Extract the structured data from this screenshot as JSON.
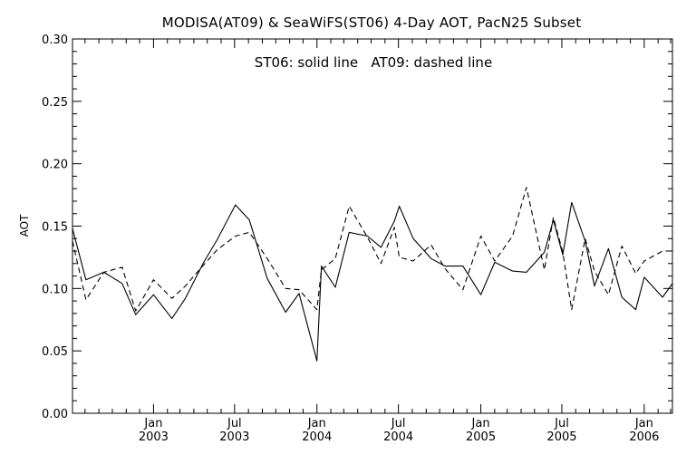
{
  "chart_data": {
    "type": "line",
    "title": "MODISA(AT09) & SeaWiFS(ST06) 4-Day AOT, PacN25 Subset",
    "annotation": "ST06: solid line   AT09: dashed line",
    "xlabel": "",
    "ylabel": "AOT",
    "ylim": [
      0.0,
      0.3
    ],
    "yticks": [
      0.0,
      0.05,
      0.1,
      0.15,
      0.2,
      0.25,
      0.3
    ],
    "ytick_labels": [
      "0.00",
      "0.05",
      "0.10",
      "0.15",
      "0.20",
      "0.25",
      "0.30"
    ],
    "xlim": [
      "2002-07-04",
      "2006-03-05"
    ],
    "xticks": [
      {
        "date": "2003-01-01",
        "month": "Jan",
        "year": "2003"
      },
      {
        "date": "2003-07-01",
        "month": "Jul",
        "year": "2003"
      },
      {
        "date": "2004-01-01",
        "month": "Jan",
        "year": "2004"
      },
      {
        "date": "2004-07-01",
        "month": "Jul",
        "year": "2004"
      },
      {
        "date": "2005-01-01",
        "month": "Jan",
        "year": "2005"
      },
      {
        "date": "2005-07-01",
        "month": "Jul",
        "year": "2005"
      },
      {
        "date": "2006-01-01",
        "month": "Jan",
        "year": "2006"
      }
    ],
    "grid": false,
    "legend": "none",
    "x": [
      "2002-07-04",
      "2002-08-03",
      "2002-09-12",
      "2002-10-23",
      "2002-11-22",
      "2003-01-01",
      "2003-02-11",
      "2003-03-13",
      "2003-04-23",
      "2003-05-23",
      "2003-07-03",
      "2003-08-03",
      "2003-09-12",
      "2003-10-23",
      "2003-11-22",
      "2004-01-01",
      "2004-01-11",
      "2004-02-11",
      "2004-03-13",
      "2004-04-23",
      "2004-05-23",
      "2004-06-22",
      "2004-07-03",
      "2004-08-03",
      "2004-09-12",
      "2004-10-13",
      "2004-11-22",
      "2005-01-01",
      "2005-02-01",
      "2005-03-13",
      "2005-04-13",
      "2005-05-23",
      "2005-06-12",
      "2005-07-03",
      "2005-07-23",
      "2005-08-22",
      "2005-09-12",
      "2005-10-13",
      "2005-11-12",
      "2005-12-13",
      "2006-01-01",
      "2006-02-11",
      "2006-03-05"
    ],
    "series": [
      {
        "name": "ST06",
        "style": "solid",
        "color": "#000000",
        "values": [
          0.148,
          0.107,
          0.113,
          0.104,
          0.079,
          0.095,
          0.076,
          0.092,
          0.121,
          0.139,
          0.167,
          0.155,
          0.108,
          0.081,
          0.096,
          0.042,
          0.118,
          0.101,
          0.145,
          0.142,
          0.133,
          0.154,
          0.166,
          0.14,
          0.124,
          0.118,
          0.118,
          0.095,
          0.121,
          0.114,
          0.113,
          0.129,
          0.155,
          0.127,
          0.169,
          0.138,
          0.102,
          0.132,
          0.093,
          0.083,
          0.109,
          0.093,
          0.104
        ]
      },
      {
        "name": "AT09",
        "style": "dashed",
        "color": "#000000",
        "values": [
          0.138,
          0.091,
          0.113,
          0.117,
          0.082,
          0.107,
          0.092,
          0.102,
          0.119,
          0.131,
          0.142,
          0.145,
          0.124,
          0.1,
          0.099,
          0.083,
          0.115,
          0.124,
          0.166,
          0.141,
          0.12,
          0.149,
          0.125,
          0.122,
          0.135,
          0.116,
          0.099,
          0.142,
          0.122,
          0.142,
          0.181,
          0.115,
          0.157,
          0.129,
          0.083,
          0.14,
          0.114,
          0.095,
          0.134,
          0.112,
          0.122,
          0.13,
          0.13
        ]
      }
    ]
  }
}
